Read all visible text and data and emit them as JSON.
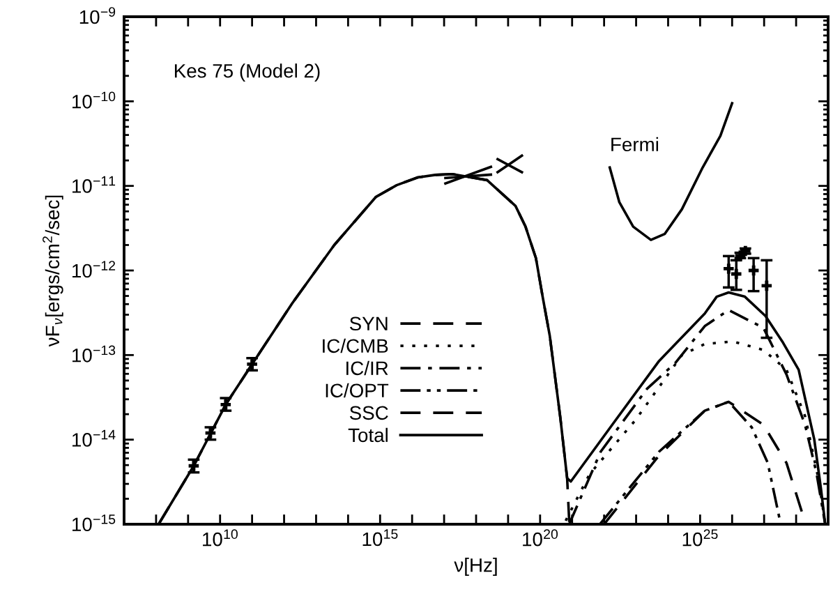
{
  "chart_data": {
    "type": "line",
    "log": "xy",
    "xlabel": "ν[Hz]",
    "ylabel": "νF$_{ν}$[ergs/cm$^{2}$/sec]",
    "xlim": [
      10000000.0,
      1e+29
    ],
    "xticks": [
      {
        "value": 100000000.0,
        "label": null
      },
      {
        "value": 1000000000.0,
        "label": null
      },
      {
        "value": 10000000000.0,
        "label": "10$^{10}$"
      },
      {
        "value": 100000000000.0,
        "label": null
      },
      {
        "value": 1000000000000.0,
        "label": null
      },
      {
        "value": 10000000000000.0,
        "label": null
      },
      {
        "value": 100000000000000.0,
        "label": null
      },
      {
        "value": 1000000000000000.0,
        "label": "10$^{15}$"
      },
      {
        "value": 1e+16,
        "label": null
      },
      {
        "value": 1e+17,
        "label": null
      },
      {
        "value": 1e+18,
        "label": null
      },
      {
        "value": 1e+19,
        "label": null
      },
      {
        "value": 1e+20,
        "label": "10$^{20}$"
      },
      {
        "value": 1e+21,
        "label": null
      },
      {
        "value": 1e+22,
        "label": null
      },
      {
        "value": 1e+23,
        "label": null
      },
      {
        "value": 1e+24,
        "label": null
      },
      {
        "value": 1e+25,
        "label": "10$^{25}$"
      },
      {
        "value": 1e+26,
        "label": null
      },
      {
        "value": 1e+27,
        "label": null
      },
      {
        "value": 1e+28,
        "label": null
      }
    ],
    "ylim": [
      1e-15,
      1e-09
    ],
    "yticks": [
      {
        "value": 1e-15,
        "label": "10$^{−15}$"
      },
      {
        "value": 1e-14,
        "label": "10$^{−14}$"
      },
      {
        "value": 1e-13,
        "label": "10$^{−13}$"
      },
      {
        "value": 1e-12,
        "label": "10$^{−12}$"
      },
      {
        "value": 1e-11,
        "label": "10$^{−11}$"
      },
      {
        "value": 1e-10,
        "label": "10$^{−10}$"
      },
      {
        "value": 1e-09,
        "label": "10$^{−9}$"
      }
    ],
    "legend": "lower left",
    "grid": false,
    "annotations": [
      "Kes 75 (Model 2)",
      "Fermi"
    ],
    "series": [
      {
        "name": "SYN",
        "color": "#000000",
        "line_style": "dashed",
        "x": [
          120000000.0,
          1500000000.0,
          15000000000.0,
          100000000000.0,
          1800000000000.0,
          37000000000000.0,
          740000000000000.0,
          3300000000000000.0,
          1.5e+16,
          5.3e+16,
          1.8e+17,
          2.2e+18,
          1.7e+19,
          3.5e+19,
          7.4e+19,
          1.2e+20,
          2e+20,
          4.3e+20,
          7e+20,
          8.2e+20
        ],
        "values": [
          1e-15,
          4.9e-15,
          2.6e-14,
          7.8e-14,
          4.1e-13,
          2e-12,
          7.4e-12,
          1.02e-11,
          1.26e-11,
          1.35e-11,
          1.38e-11,
          1.17e-11,
          5.8e-12,
          3.3e-12,
          1.4e-12,
          4.9e-13,
          1.7e-13,
          1.8e-14,
          3.5e-15,
          1e-15
        ]
      },
      {
        "name": "IC/CMB",
        "color": "#000000",
        "line_style": "dotted",
        "x": [
          6.3e+20,
          3.5e+21,
          9.5e+22,
          2.7e+24,
          1.4e+25,
          1.05e+26,
          9.5e+26,
          5e+27,
          1.9e+28,
          5.2e+28,
          8.1e+28
        ],
        "values": [
          1.1e-15,
          3.9e-15,
          1.7e-14,
          1e-13,
          1.35e-13,
          1.45e-13,
          1.15e-13,
          6.7e-14,
          1.9e-14,
          3.2e-15,
          1e-15
        ]
      },
      {
        "name": "IC/IR",
        "color": "#000000",
        "line_style": "dashdot",
        "x": [
          8.1e+20,
          7.8e+21,
          2.2e+23,
          1.7e+24,
          1.4e+25,
          7.8e+25,
          9.5e+26,
          5e+27,
          1.9e+28,
          4.3e+28,
          8.1e+28
        ],
        "values": [
          1e-15,
          7.2e-15,
          4e-14,
          8.1e-14,
          2.2e-13,
          3.4e-13,
          2.1e-13,
          5.9e-14,
          1.5e-14,
          4.1e-15,
          1e-15
        ]
      },
      {
        "name": "IC/OPT",
        "color": "#000000",
        "line_style": "dashdotdot",
        "x": [
          7.4e+21,
          5.2e+23,
          1.4e+25,
          7.8e+25,
          4.1e+26,
          1.3e+27,
          3.3e+27
        ],
        "values": [
          1e-15,
          7.2e-15,
          2.2e-14,
          2.8e-14,
          1.4e-14,
          5.3e-15,
          1e-15
        ]
      },
      {
        "name": "SSC",
        "color": "#000000",
        "line_style": "dashed",
        "x": [
          1e+22,
          5.2e+23,
          1.4e+25,
          7.8e+25,
          9.5e+26,
          5e+27,
          2e+28
        ],
        "values": [
          1e-15,
          6.5e-15,
          2.2e-14,
          2.8e-14,
          1.5e-14,
          5.3e-15,
          1e-15
        ]
      },
      {
        "name": "Total",
        "color": "#000000",
        "line_style": "solid",
        "x": [
          120000000.0,
          1500000000.0,
          15000000000.0,
          100000000000.0,
          1800000000000.0,
          37000000000000.0,
          740000000000000.0,
          3300000000000000.0,
          1.5e+16,
          5.3e+16,
          1.8e+17,
          2.2e+18,
          1.7e+19,
          3.5e+19,
          7.4e+19,
          1.2e+20,
          2e+20,
          4.3e+20,
          7e+20,
          9.1e+20,
          1.8e+22,
          5.2e+23,
          1.4e+25,
          3.3e+25,
          7.8e+25,
          2.5e+26,
          1.1e+27,
          3.9e+27,
          1.2e+28,
          3.7e+28,
          6e+28,
          8.1e+28
        ],
        "values": [
          1e-15,
          4.9e-15,
          2.6e-14,
          7.8e-14,
          4.1e-13,
          2e-12,
          7.4e-12,
          1.02e-11,
          1.26e-11,
          1.35e-11,
          1.38e-11,
          1.17e-11,
          5.8e-12,
          3.3e-12,
          1.4e-12,
          4.9e-13,
          1.7e-13,
          1.8e-14,
          3.5e-15,
          3.2e-15,
          1.5e-14,
          8.5e-14,
          3.1e-13,
          4.9e-13,
          5.5e-13,
          4.9e-13,
          2.9e-13,
          1.4e-13,
          6.7e-14,
          1e-14,
          2.6e-15,
          1e-15
        ]
      },
      {
        "color": "#000000",
        "line_style": "solid",
        "x": [
          1.5e+22,
          3e+22,
          8.1e+22,
          2.9e+23,
          7.8e+23,
          2.7e+24,
          1.2e+25,
          4.3e+25,
          1e+26
        ],
        "values": [
          1.65e-11,
          6.4e-12,
          3.3e-12,
          2.3e-12,
          2.7e-12,
          5.3e-12,
          1.65e-11,
          3.9e-11,
          9.5e-11
        ]
      },
      {
        "color": "#000000",
        "line_style": "solid",
        "x": [
          1.1e+17,
          2.9e+18
        ],
        "values": [
          1.07e-11,
          1.68e-11
        ]
      },
      {
        "color": "#000000",
        "line_style": "solid",
        "x": [
          1.1e+17,
          2.9e+18
        ],
        "values": [
          1.24e-11,
          1.36e-11
        ]
      },
      {
        "color": "#000000",
        "line_style": "solid",
        "x": [
          4.7e+18,
          2.7e+19
        ],
        "values": [
          2.07e-11,
          1.45e-11
        ]
      },
      {
        "color": "#000000",
        "line_style": "solid",
        "x": [
          4.7e+18,
          2.7e+19
        ],
        "values": [
          1.45e-11,
          2.28e-11
        ]
      },
      {
        "type": "scatter",
        "color": "#000000",
        "marker": "cross",
        "x": [
          1500000000.0,
          5000000000.0,
          15000000000.0,
          100000000000.0
        ],
        "values": [
          4.9e-15,
          1.2e-14,
          2.6e-14,
          7.8e-14
        ],
        "errors": [
          [
            4.1e-15,
            5.8e-15
          ],
          [
            1e-14,
            1.4e-14
          ],
          [
            2.2e-14,
            3.1e-14
          ],
          [
            6.6e-14,
            9.2e-14
          ]
        ]
      },
      {
        "type": "scatter",
        "color": "#000000",
        "marker": "cross",
        "x": [
          7.8e+25,
          1.35e+26,
          1.8e+26,
          2.6e+26,
          4.7e+26,
          1.2e+27
        ],
        "values": [
          1.05e-12,
          9.1e-13,
          1.5e-12,
          1.7e-12,
          1e-12,
          6.6e-13
        ],
        "errors": [
          [
            6.3e-13,
            1.48e-12
          ],
          [
            5.9e-13,
            1.32e-12
          ],
          [
            1.4e-12,
            1.62e-12
          ],
          [
            1.58e-12,
            1.82e-12
          ],
          [
            5.7e-13,
            1.4e-12
          ],
          [
            1.6e-13,
            1.32e-12
          ]
        ]
      }
    ]
  }
}
